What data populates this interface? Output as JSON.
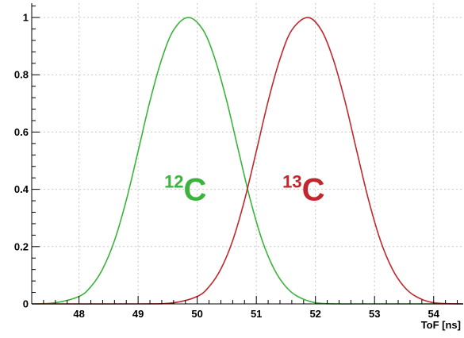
{
  "chart_data": {
    "type": "line",
    "title": "",
    "xlabel": "ToF [ns]",
    "ylabel": "",
    "xlim": [
      47.2,
      54.5
    ],
    "ylim": [
      0,
      1.05
    ],
    "grid": true,
    "legend": "none",
    "x_ticks": [
      {
        "value": 48,
        "label": "48"
      },
      {
        "value": 49,
        "label": "49"
      },
      {
        "value": 50,
        "label": "50"
      },
      {
        "value": 51,
        "label": "51"
      },
      {
        "value": 52,
        "label": "52"
      },
      {
        "value": 53,
        "label": "53"
      },
      {
        "value": 54,
        "label": "54"
      }
    ],
    "y_ticks": [
      {
        "value": 0,
        "label": "0"
      },
      {
        "value": 0.2,
        "label": "0.2"
      },
      {
        "value": 0.4,
        "label": "0.4"
      },
      {
        "value": 0.6,
        "label": "0.6"
      },
      {
        "value": 0.8,
        "label": "0.8"
      },
      {
        "value": 1,
        "label": "1"
      }
    ],
    "series": [
      {
        "color": "#3cb43c",
        "x": [
          47.2,
          47.6,
          48.0,
          48.2,
          48.4,
          48.6,
          48.8,
          49.0,
          49.2,
          49.4,
          49.6,
          49.85,
          50.1,
          50.3,
          50.5,
          50.7,
          50.9,
          51.1,
          51.3,
          51.5,
          51.7,
          52.0,
          52.4,
          52.8,
          54.5
        ],
        "y": [
          0.0,
          0.004,
          0.026,
          0.06,
          0.122,
          0.221,
          0.362,
          0.533,
          0.708,
          0.855,
          0.956,
          1.0,
          0.956,
          0.855,
          0.708,
          0.533,
          0.362,
          0.221,
          0.122,
          0.06,
          0.026,
          0.004,
          0.0,
          0.0,
          0.0
        ]
      },
      {
        "color": "#c0282d",
        "x": [
          47.2,
          49.0,
          49.6,
          50.0,
          50.2,
          50.4,
          50.6,
          50.8,
          51.0,
          51.2,
          51.4,
          51.6,
          51.87,
          52.1,
          52.3,
          52.5,
          52.7,
          52.9,
          53.1,
          53.3,
          53.5,
          53.7,
          54.0,
          54.5
        ],
        "y": [
          0.0,
          0.0,
          0.004,
          0.026,
          0.06,
          0.122,
          0.221,
          0.362,
          0.533,
          0.708,
          0.855,
          0.956,
          1.0,
          0.956,
          0.855,
          0.708,
          0.533,
          0.362,
          0.221,
          0.122,
          0.06,
          0.026,
          0.004,
          0.0
        ]
      }
    ],
    "annotations": [
      {
        "sup": "12",
        "text": "C",
        "x": 49.8,
        "y": 0.4,
        "color": "#3cb43c"
      },
      {
        "sup": "13",
        "text": "C",
        "x": 51.8,
        "y": 0.4,
        "color": "#c0282d"
      }
    ]
  }
}
